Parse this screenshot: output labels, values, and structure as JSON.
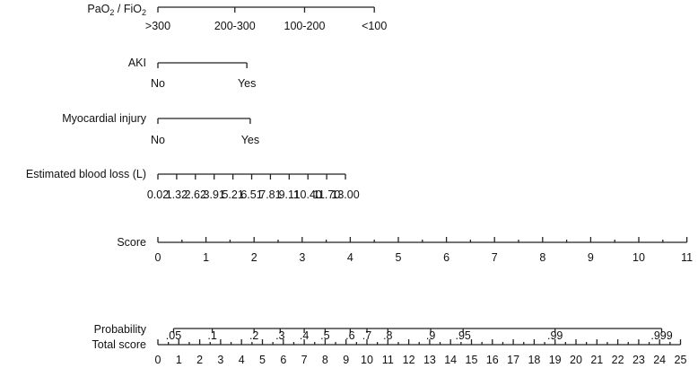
{
  "chart_data": {
    "type": "nomogram",
    "title": "",
    "scales": [
      {
        "name": "PaO2 / FiO2",
        "labels": [
          ">300",
          "200-300",
          "100-200",
          "<100"
        ],
        "points": [
          0,
          1.6,
          3.05,
          4.5
        ]
      },
      {
        "name": "AKI",
        "labels": [
          "No",
          "Yes"
        ],
        "points": [
          0,
          1.85
        ]
      },
      {
        "name": "Myocardial injury",
        "labels": [
          "No",
          "Yes"
        ],
        "points": [
          0,
          1.92
        ]
      },
      {
        "name": "Estimated blood loss (L)",
        "labels": [
          "0.02",
          "1.32",
          "2.62",
          "3.91",
          "5.21",
          "6.51",
          "7.81",
          "9.11",
          "10.40",
          "11.70",
          "13.00"
        ],
        "points": [
          0,
          0.39,
          0.78,
          1.17,
          1.56,
          1.95,
          2.34,
          2.73,
          3.12,
          3.51,
          3.9
        ]
      },
      {
        "name": "Score",
        "labels": [
          "0",
          "1",
          "2",
          "3",
          "4",
          "5",
          "6",
          "7",
          "8",
          "9",
          "10",
          "11"
        ],
        "points": [
          0,
          1,
          2,
          3,
          4,
          5,
          6,
          7,
          8,
          9,
          10,
          11
        ]
      },
      {
        "name": "Probability",
        "labels": [
          ".05",
          ".1",
          ".2",
          ".3",
          ".4",
          ".5",
          ".6",
          ".7",
          ".8",
          ".9",
          ".95",
          ".99",
          ".999"
        ],
        "points": [
          0.75,
          2.6,
          4.6,
          5.85,
          7.0,
          8.0,
          9.2,
          10.0,
          11.0,
          13.05,
          14.6,
          19.0,
          24.1
        ],
        "axis": "total"
      },
      {
        "name": "Total score",
        "labels": [
          "0",
          "1",
          "2",
          "3",
          "4",
          "5",
          "6",
          "7",
          "8",
          "9",
          "10",
          "11",
          "12",
          "13",
          "14",
          "15",
          "16",
          "17",
          "18",
          "19",
          "20",
          "21",
          "22",
          "23",
          "24",
          "25"
        ],
        "points": [
          0,
          1,
          2,
          3,
          4,
          5,
          6,
          7,
          8,
          9,
          10,
          11,
          12,
          13,
          14,
          15,
          16,
          17,
          18,
          19,
          20,
          21,
          22,
          23,
          24,
          25
        ],
        "axis": "total"
      }
    ]
  },
  "labels": {
    "pao2": "PaO",
    "pao2_sub": "2",
    "pao2_mid": " / FiO",
    "fio2_sub": "2"
  }
}
